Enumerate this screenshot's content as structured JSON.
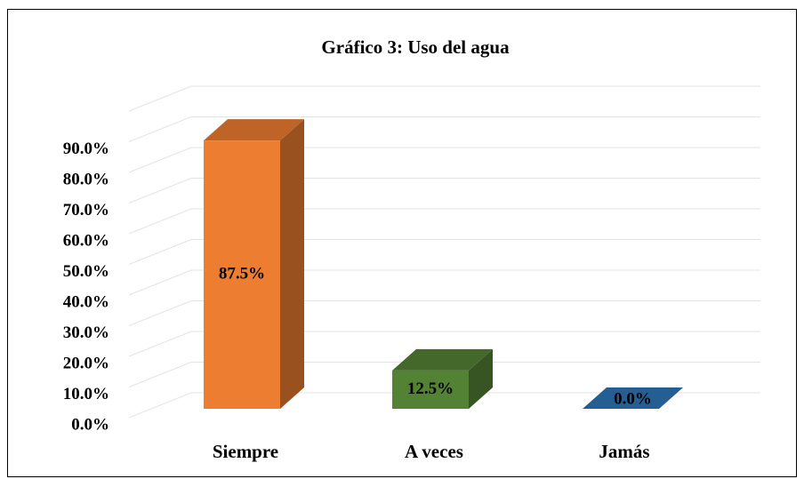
{
  "chart_data": {
    "type": "bar3d",
    "title": "Gráfico 3: Uso del agua",
    "categories": [
      "Siempre",
      "A veces",
      "Jamás"
    ],
    "values": [
      87.5,
      12.5,
      0
    ],
    "value_labels": [
      "87.5%",
      "12.5%",
      "0.0%"
    ],
    "colors": [
      "#ed7d31",
      "#548235",
      "#2e75b6"
    ],
    "ylim": [
      0,
      100
    ],
    "yticks": [
      {
        "value": 0,
        "label": "0.0%"
      },
      {
        "value": 10,
        "label": "10.0%"
      },
      {
        "value": 20,
        "label": "20.0%"
      },
      {
        "value": 30,
        "label": "30.0%"
      },
      {
        "value": 40,
        "label": "40.0%"
      },
      {
        "value": 50,
        "label": "50.0%"
      },
      {
        "value": 60,
        "label": "60.0%"
      },
      {
        "value": 70,
        "label": "70.0%"
      },
      {
        "value": 80,
        "label": "80.0%"
      },
      {
        "value": 90,
        "label": "90.0%"
      }
    ],
    "grid": true
  }
}
